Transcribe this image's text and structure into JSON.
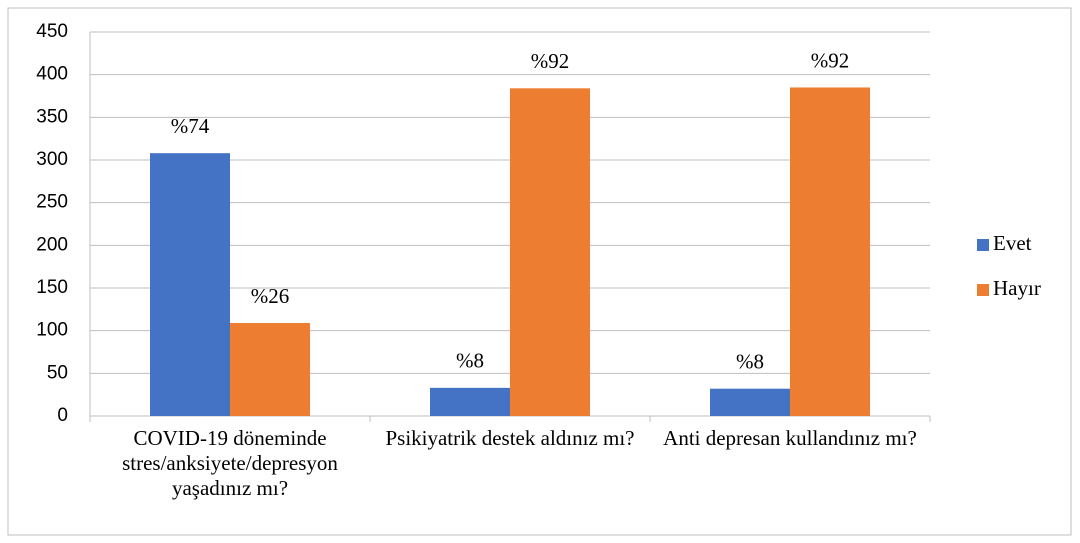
{
  "chart_data": {
    "type": "bar",
    "categories": [
      "COVID-19 döneminde stres/anksiyete/depresyon yaşadınız mı?",
      "Psikiyatrik destek aldınız mı?",
      "Anti depresan kullandınız mı?"
    ],
    "series": [
      {
        "name": "Evet",
        "color": "#4472c4",
        "values": [
          308,
          33,
          32
        ],
        "labels": [
          "%74",
          "%8",
          "%8"
        ]
      },
      {
        "name": "Hayır",
        "color": "#ed7d31",
        "values": [
          109,
          384,
          385
        ],
        "labels": [
          "%26",
          "%92",
          "%92"
        ]
      }
    ],
    "ylim": [
      0,
      450
    ],
    "yticks": [
      0,
      50,
      100,
      150,
      200,
      250,
      300,
      350,
      400,
      450
    ],
    "grid": true,
    "legend": "right"
  }
}
